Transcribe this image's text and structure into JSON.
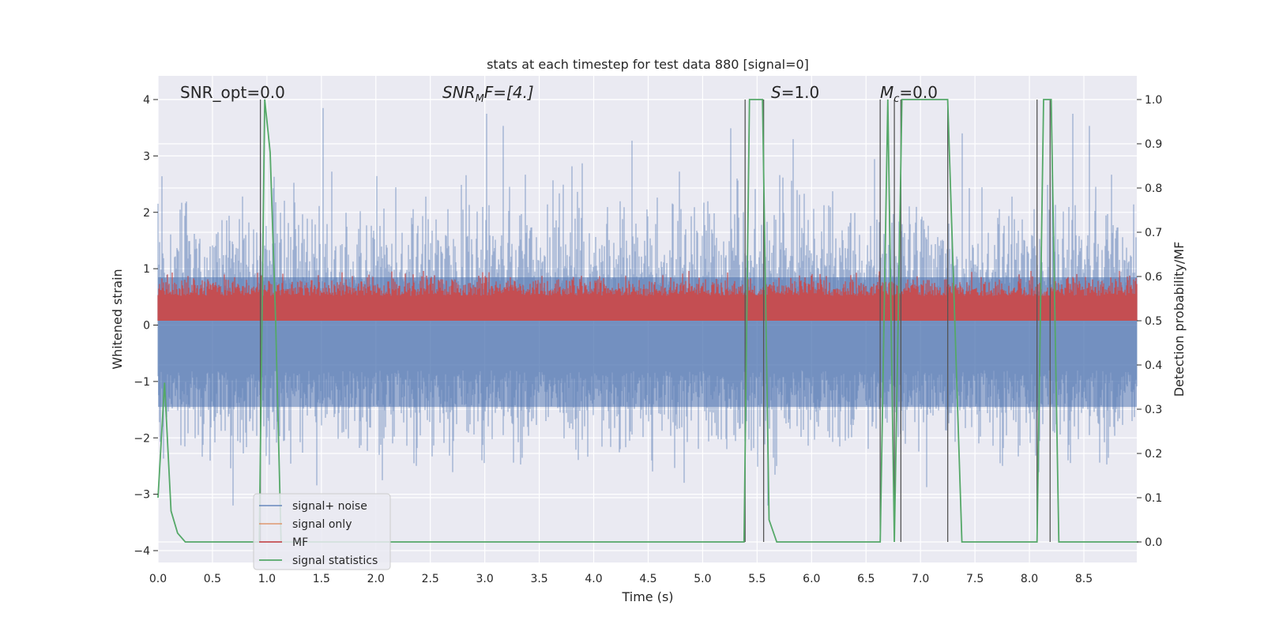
{
  "chart_data": {
    "type": "line",
    "title": "stats at each timestep for test data 880 [signal=0]",
    "xlabel": "Time (s)",
    "ylabel": "Whitened strain",
    "y2label": "Detection probability/MF",
    "xlim": [
      0.0,
      9.0
    ],
    "ylim": [
      -4.2,
      4.4
    ],
    "y2lim": [
      -0.05,
      1.05
    ],
    "xticks": [
      "0.0",
      "0.5",
      "1.0",
      "1.5",
      "2.0",
      "2.5",
      "3.0",
      "3.5",
      "4.0",
      "4.5",
      "5.0",
      "5.5",
      "6.0",
      "6.5",
      "7.0",
      "7.5",
      "8.0",
      "8.5"
    ],
    "yticks": [
      "4",
      "3",
      "2",
      "1",
      "0",
      "−1",
      "−2",
      "−3",
      "−4"
    ],
    "y2ticks": [
      "1.0",
      "0.9",
      "0.8",
      "0.7",
      "0.6",
      "0.5",
      "0.4",
      "0.3",
      "0.2",
      "0.1",
      "0.0"
    ],
    "grid": true,
    "legend_position": "lower-left",
    "annotations": {
      "snr_opt": "SNR_opt=0.0",
      "snr_mf_main": "SNR",
      "snr_mf_sub": "M",
      "snr_mf_rest": "F=[4.]",
      "s_main": "S",
      "s_rest": "=1.0",
      "mc_main": "M",
      "mc_sub": "c",
      "mc_rest": "=0.0"
    },
    "series": [
      {
        "name": "signal+ noise",
        "color": "#4c72b0",
        "kind": "noise",
        "amplitude_range": [
          -3.2,
          4.0
        ]
      },
      {
        "name": "signal only",
        "color": "#dd8452",
        "kind": "flat",
        "value": 0
      },
      {
        "name": "MF",
        "color": "#c44e52",
        "kind": "band",
        "amplitude_range": [
          0.0,
          0.9
        ]
      },
      {
        "name": "signal statistics",
        "color": "#55a868",
        "kind": "probability",
        "x": [
          0.0,
          0.06,
          0.12,
          0.18,
          0.25,
          0.93,
          0.98,
          1.03,
          1.08,
          1.13,
          5.38,
          5.43,
          5.55,
          5.61,
          5.68,
          6.63,
          6.7,
          6.76,
          6.83,
          6.9,
          7.25,
          7.38,
          8.07,
          8.13,
          8.2,
          8.27,
          8.33,
          9.0
        ],
        "y": [
          0.1,
          0.36,
          0.07,
          0.02,
          0.0,
          0.0,
          1.0,
          0.88,
          0.5,
          0.0,
          0.0,
          1.0,
          1.0,
          0.05,
          0.0,
          0.0,
          1.0,
          0.0,
          1.0,
          1.0,
          1.0,
          0.0,
          0.0,
          1.0,
          1.0,
          0.0,
          0.0,
          0.0
        ]
      }
    ],
    "vlines": [
      0.94,
      5.39,
      5.56,
      6.63,
      6.76,
      6.82,
      7.25,
      8.07,
      8.19
    ]
  }
}
